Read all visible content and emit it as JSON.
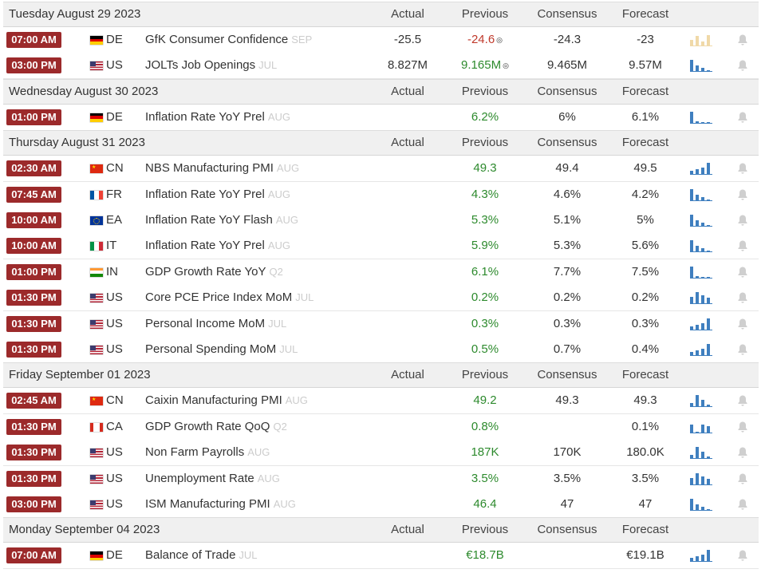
{
  "colors": {
    "time_badge": "#9c2a2b",
    "previous_positive": "#2d8a2d",
    "previous_negative": "#c0392b",
    "spark_bar": "#3f7fbf",
    "spark_bar_faded": "#f0d9a8",
    "bell": "#cfcfcf"
  },
  "columns": {
    "actual": "Actual",
    "previous": "Previous",
    "consensus": "Consensus",
    "forecast": "Forecast"
  },
  "days": [
    {
      "title": "Tuesday August 29 2023",
      "events": [
        {
          "time": "07:00 AM",
          "flag": "de",
          "country": "DE",
          "event": "GfK Consumer Confidence",
          "ref": "SEP",
          "actual": "-25.5",
          "previous": "-24.6",
          "previous_color": "red",
          "revised": true,
          "consensus": "-24.3",
          "forecast": "-23",
          "spark": "faded"
        },
        {
          "time": "03:00 PM",
          "flag": "us",
          "country": "US",
          "event": "JOLTs Job Openings",
          "ref": "JUL",
          "actual": "8.827M",
          "previous": "9.165M",
          "previous_color": "green",
          "revised": true,
          "consensus": "9.465M",
          "forecast": "9.57M",
          "spark": "down"
        }
      ]
    },
    {
      "title": "Wednesday August 30 2023",
      "events": [
        {
          "time": "01:00 PM",
          "flag": "de",
          "country": "DE",
          "event": "Inflation Rate YoY Prel",
          "ref": "AUG",
          "actual": "",
          "previous": "6.2%",
          "previous_color": "green",
          "revised": false,
          "consensus": "6%",
          "forecast": "6.1%",
          "spark": "low"
        }
      ]
    },
    {
      "title": "Thursday August 31 2023",
      "events": [
        {
          "time": "02:30 AM",
          "flag": "cn",
          "country": "CN",
          "event": "NBS Manufacturing PMI",
          "ref": "AUG",
          "actual": "",
          "previous": "49.3",
          "previous_color": "green",
          "revised": false,
          "consensus": "49.4",
          "forecast": "49.5",
          "spark": "up"
        },
        {
          "time": "07:45 AM",
          "flag": "fr",
          "country": "FR",
          "event": "Inflation Rate YoY Prel",
          "ref": "AUG",
          "actual": "",
          "previous": "4.3%",
          "previous_color": "green",
          "revised": false,
          "consensus": "4.6%",
          "forecast": "4.2%",
          "spark": "down"
        },
        {
          "time": "10:00 AM",
          "flag": "eu",
          "country": "EA",
          "event": "Inflation Rate YoY Flash",
          "ref": "AUG",
          "actual": "",
          "previous": "5.3%",
          "previous_color": "green",
          "revised": false,
          "consensus": "5.1%",
          "forecast": "5%",
          "spark": "down"
        },
        {
          "time": "10:00 AM",
          "flag": "it",
          "country": "IT",
          "event": "Inflation Rate YoY Prel",
          "ref": "AUG",
          "actual": "",
          "previous": "5.9%",
          "previous_color": "green",
          "revised": false,
          "consensus": "5.3%",
          "forecast": "5.6%",
          "spark": "down"
        },
        {
          "time": "01:00 PM",
          "flag": "in",
          "country": "IN",
          "event": "GDP Growth Rate YoY",
          "ref": "Q2",
          "actual": "",
          "previous": "6.1%",
          "previous_color": "green",
          "revised": false,
          "consensus": "7.7%",
          "forecast": "7.5%",
          "spark": "low"
        },
        {
          "time": "01:30 PM",
          "flag": "us",
          "country": "US",
          "event": "Core PCE Price Index MoM",
          "ref": "JUL",
          "actual": "",
          "previous": "0.2%",
          "previous_color": "green",
          "revised": false,
          "consensus": "0.2%",
          "forecast": "0.2%",
          "spark": "mid"
        },
        {
          "time": "01:30 PM",
          "flag": "us",
          "country": "US",
          "event": "Personal Income MoM",
          "ref": "JUL",
          "actual": "",
          "previous": "0.3%",
          "previous_color": "green",
          "revised": false,
          "consensus": "0.3%",
          "forecast": "0.3%",
          "spark": "up"
        },
        {
          "time": "01:30 PM",
          "flag": "us",
          "country": "US",
          "event": "Personal Spending MoM",
          "ref": "JUL",
          "actual": "",
          "previous": "0.5%",
          "previous_color": "green",
          "revised": false,
          "consensus": "0.7%",
          "forecast": "0.4%",
          "spark": "up"
        }
      ]
    },
    {
      "title": "Friday September 01 2023",
      "events": [
        {
          "time": "02:45 AM",
          "flag": "cn",
          "country": "CN",
          "event": "Caixin Manufacturing PMI",
          "ref": "AUG",
          "actual": "",
          "previous": "49.2",
          "previous_color": "green",
          "revised": false,
          "consensus": "49.3",
          "forecast": "49.3",
          "spark": "peak"
        },
        {
          "time": "01:30 PM",
          "flag": "ca",
          "country": "CA",
          "event": "GDP Growth Rate QoQ",
          "ref": "Q2",
          "actual": "",
          "previous": "0.8%",
          "previous_color": "green",
          "revised": false,
          "consensus": "",
          "forecast": "0.1%",
          "spark": "flat"
        },
        {
          "time": "01:30 PM",
          "flag": "us",
          "country": "US",
          "event": "Non Farm Payrolls",
          "ref": "AUG",
          "actual": "",
          "previous": "187K",
          "previous_color": "green",
          "revised": false,
          "consensus": "170K",
          "forecast": "180.0K",
          "spark": "peak"
        },
        {
          "time": "01:30 PM",
          "flag": "us",
          "country": "US",
          "event": "Unemployment Rate",
          "ref": "AUG",
          "actual": "",
          "previous": "3.5%",
          "previous_color": "green",
          "revised": false,
          "consensus": "3.5%",
          "forecast": "3.5%",
          "spark": "mid"
        },
        {
          "time": "03:00 PM",
          "flag": "us",
          "country": "US",
          "event": "ISM Manufacturing PMI",
          "ref": "AUG",
          "actual": "",
          "previous": "46.4",
          "previous_color": "green",
          "revised": false,
          "consensus": "47",
          "forecast": "47",
          "spark": "down"
        }
      ]
    },
    {
      "title": "Monday September 04 2023",
      "events": [
        {
          "time": "07:00 AM",
          "flag": "de",
          "country": "DE",
          "event": "Balance of Trade",
          "ref": "JUL",
          "actual": "",
          "previous": "€18.7B",
          "previous_color": "green",
          "revised": false,
          "consensus": "",
          "forecast": "€19.1B",
          "spark": "up"
        }
      ]
    }
  ]
}
